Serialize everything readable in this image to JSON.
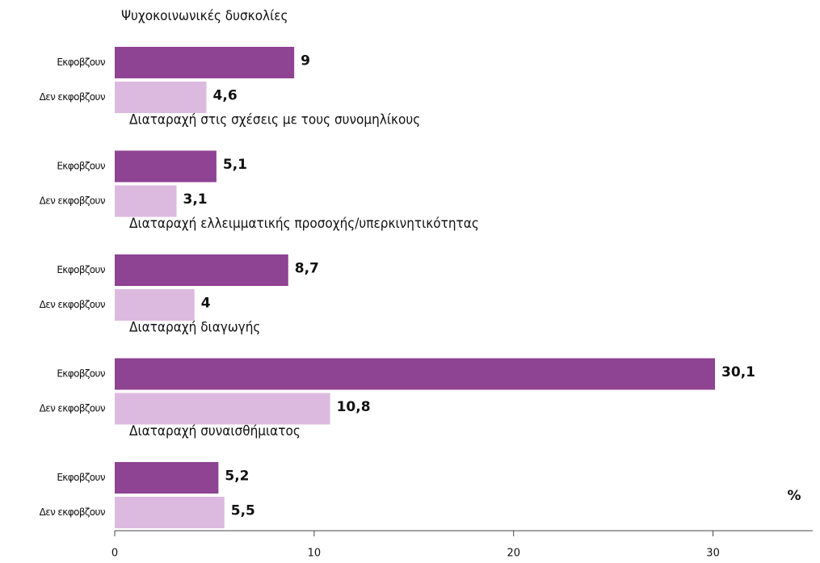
{
  "chart_data": {
    "type": "bar",
    "categories": [
      "Ψυχοκοινωνικές δυσκολίες",
      "Διαταραχή στις σχέσεις με τους συνομηλίκους",
      "Διαταραχή ελλειμματικής προσοχής/υπερκινητικότητας",
      "Διαταραχή διαγωγής",
      "Διαταραχή συναισθήμιατος"
    ],
    "series": [
      {
        "name": "Εκφοβζουν",
        "color": "#8e4393",
        "values": [
          9,
          5.1,
          8.7,
          30.1,
          5.2
        ],
        "value_labels": [
          "9",
          "5,1",
          "8,7",
          "30,1",
          "5,2"
        ]
      },
      {
        "name": "Δεν εκφοβζουν",
        "color": "#dcbadf",
        "values": [
          4.6,
          3.1,
          4,
          10.8,
          5.5
        ],
        "value_labels": [
          "4,6",
          "3,1",
          "4",
          "10,8",
          "5,5"
        ]
      }
    ],
    "xlim": [
      0,
      35
    ],
    "xticks": [
      0,
      10,
      20,
      30
    ],
    "unit_label": "%"
  }
}
